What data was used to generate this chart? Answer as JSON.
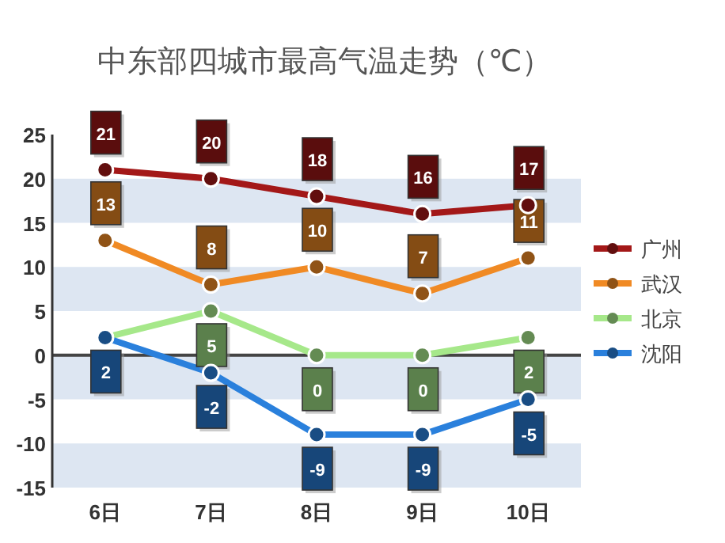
{
  "chart_data": {
    "type": "line",
    "title": "中东部四城市最高气温走势（℃）",
    "categories": [
      "6日",
      "7日",
      "8日",
      "9日",
      "10日"
    ],
    "series": [
      {
        "name": "广州",
        "color": "#a31818",
        "values": [
          21,
          20,
          18,
          16,
          17
        ],
        "value_labels": [
          "21",
          "20",
          "18",
          "16",
          "17"
        ]
      },
      {
        "name": "武汉",
        "color": "#f08a24",
        "values": [
          13,
          8,
          10,
          7,
          11
        ],
        "value_labels": [
          "13",
          "8",
          "10",
          "7",
          "11"
        ]
      },
      {
        "name": "北京",
        "color": "#a6e88a",
        "values": [
          2,
          5,
          0,
          0,
          2
        ],
        "value_labels": [
          null,
          "5",
          "0",
          "0",
          "2"
        ]
      },
      {
        "name": "沈阳",
        "color": "#2a80dc",
        "values": [
          2,
          -2,
          -9,
          -9,
          -5
        ],
        "value_labels": [
          "2",
          "-2",
          "-9",
          "-9",
          "-5"
        ]
      }
    ],
    "ylim": [
      -15,
      25
    ],
    "yticks": [
      -15,
      -10,
      -5,
      0,
      5,
      10,
      15,
      20,
      25
    ],
    "bands": [
      {
        "axis": "y",
        "from": 15,
        "to": 20,
        "color": "#dde6f2"
      },
      {
        "axis": "y",
        "from": 5,
        "to": 10,
        "color": "#dde6f2"
      },
      {
        "axis": "y",
        "from": -5,
        "to": 0,
        "color": "#dde6f2"
      },
      {
        "axis": "y",
        "from": -15,
        "to": -10,
        "color": "#dde6f2"
      }
    ],
    "ref_lines": [
      {
        "axis": "y",
        "value": 0,
        "color": "#444444"
      }
    ],
    "legend": "right",
    "marker": "circle",
    "line_style": "solid"
  }
}
